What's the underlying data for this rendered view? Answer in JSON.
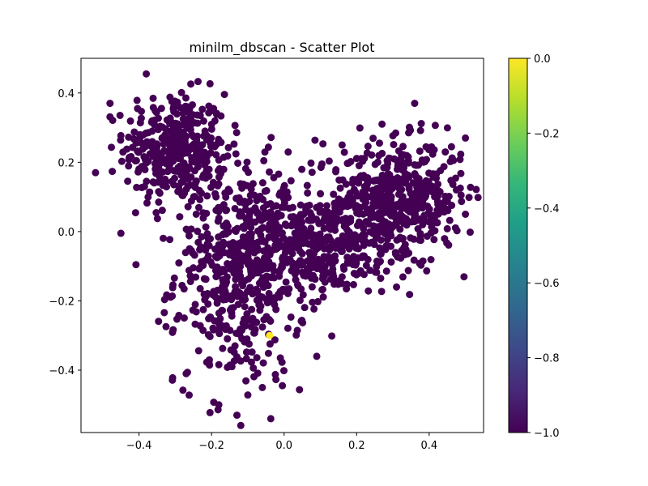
{
  "chart_data": {
    "type": "scatter",
    "title": "minilm_dbscan - Scatter Plot",
    "xlabel": "",
    "ylabel": "",
    "xlim": [
      -0.56,
      0.55
    ],
    "ylim": [
      -0.58,
      0.5
    ],
    "x_ticks": [
      -0.4,
      -0.2,
      0.0,
      0.2,
      0.4
    ],
    "x_tick_labels": [
      "−0.4",
      "−0.2",
      "0.0",
      "0.2",
      "0.4"
    ],
    "y_ticks": [
      -0.4,
      -0.2,
      0.0,
      0.2,
      0.4
    ],
    "y_tick_labels": [
      "−0.4",
      "−0.2",
      "0.0",
      "0.2",
      "0.4"
    ],
    "grid": false,
    "colormap": "viridis",
    "colorbar": {
      "range": [
        -1.0,
        0.0
      ],
      "ticks": [
        0.0,
        -0.2,
        -0.4,
        -0.6,
        -0.8,
        -1.0
      ],
      "tick_labels": [
        "0.0",
        "−0.2",
        "−0.4",
        "−0.6",
        "−0.8",
        "−1.0"
      ],
      "colors": [
        "#440154",
        "#482878",
        "#3e4989",
        "#31688e",
        "#26828e",
        "#1f9e89",
        "#35b779",
        "#6ece58",
        "#b5de2b",
        "#fde725"
      ]
    },
    "cluster_colors": {
      "-1": "#440154",
      "0": "#fde725"
    },
    "clusters": [
      {
        "label": -1,
        "cx": -0.3,
        "cy": 0.24,
        "sx": 0.07,
        "sy": 0.08,
        "n": 360
      },
      {
        "label": -1,
        "cx": -0.12,
        "cy": -0.12,
        "sx": 0.09,
        "sy": 0.16,
        "n": 520
      },
      {
        "label": -1,
        "cx": 0.06,
        "cy": -0.04,
        "sx": 0.12,
        "sy": 0.07,
        "n": 340
      },
      {
        "label": -1,
        "cx": 0.33,
        "cy": 0.1,
        "sx": 0.08,
        "sy": 0.08,
        "n": 430
      },
      {
        "label": -1,
        "cx": 0.2,
        "cy": 0.04,
        "sx": 0.1,
        "sy": 0.09,
        "n": 160
      }
    ],
    "points": [
      {
        "x": -0.04,
        "y": -0.3,
        "label": 0
      },
      {
        "x": -0.52,
        "y": 0.17,
        "label": -1
      },
      {
        "x": -0.38,
        "y": 0.455,
        "label": -1
      },
      {
        "x": -0.45,
        "y": -0.005,
        "label": -1
      },
      {
        "x": -0.13,
        "y": -0.53,
        "label": -1
      },
      {
        "x": -0.18,
        "y": -0.5,
        "label": -1
      },
      {
        "x": 0.36,
        "y": 0.37,
        "label": -1
      },
      {
        "x": 0.5,
        "y": 0.27,
        "label": -1
      },
      {
        "x": 0.5,
        "y": 0.05,
        "label": -1
      },
      {
        "x": 0.31,
        "y": -0.16,
        "label": -1
      },
      {
        "x": 0.27,
        "y": 0.31,
        "label": -1
      },
      {
        "x": -0.48,
        "y": 0.37,
        "label": -1
      },
      {
        "x": 0.16,
        "y": 0.25,
        "label": -1
      },
      {
        "x": -0.27,
        "y": -0.41,
        "label": -1
      },
      {
        "x": 0.09,
        "y": -0.36,
        "label": -1
      },
      {
        "x": -0.06,
        "y": -0.45,
        "label": -1
      }
    ]
  }
}
